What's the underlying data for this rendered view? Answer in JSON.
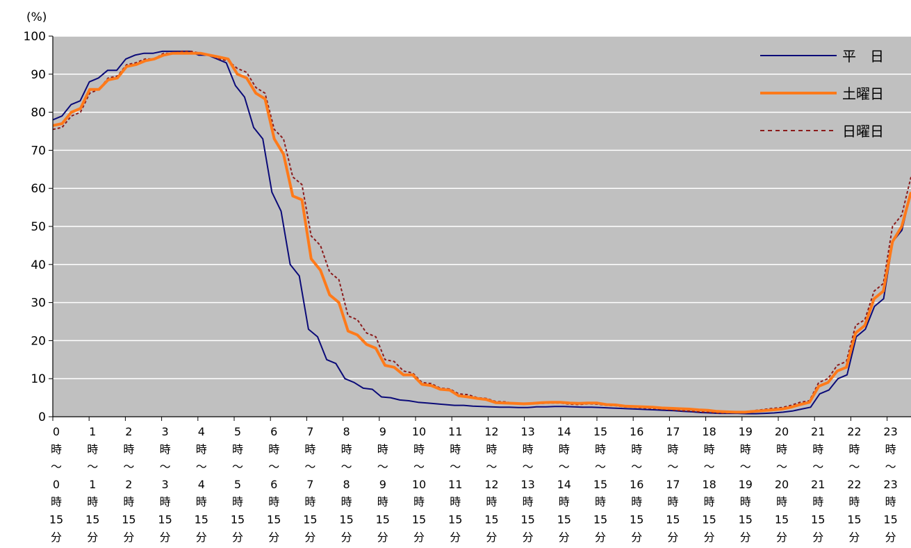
{
  "chart_data": {
    "type": "line",
    "y_unit_label": "(%)",
    "ylim": [
      0,
      100
    ],
    "yticks": [
      0,
      10,
      20,
      30,
      40,
      50,
      60,
      70,
      80,
      90,
      100
    ],
    "grid": true,
    "legend_position": "top-right",
    "x_labels": [
      "0",
      "1",
      "2",
      "3",
      "4",
      "5",
      "6",
      "7",
      "8",
      "9",
      "10",
      "11",
      "12",
      "13",
      "14",
      "15",
      "16",
      "17",
      "18",
      "19",
      "20",
      "21",
      "22",
      "23"
    ],
    "x_label_parts": {
      "hour_suffix": "時",
      "range_mark": "〜",
      "minute_text": "15",
      "minute_suffix": "分"
    },
    "series": [
      {
        "name": "平　日",
        "color": "#0a0a78",
        "style": "solid",
        "values": [
          78,
          79,
          82,
          83,
          88,
          89,
          91,
          91,
          94,
          95,
          95.5,
          95.5,
          96,
          96,
          96,
          96,
          95,
          95,
          94,
          93,
          87,
          84,
          76,
          73,
          59,
          54,
          40,
          37,
          23,
          21,
          15,
          14,
          10,
          9,
          7.5,
          7.2,
          5.2,
          5.0,
          4.4,
          4.2,
          3.8,
          3.6,
          3.4,
          3.2,
          3.0,
          3.0,
          2.8,
          2.7,
          2.6,
          2.5,
          2.5,
          2.4,
          2.4,
          2.6,
          2.6,
          2.7,
          2.7,
          2.6,
          2.5,
          2.5,
          2.4,
          2.3,
          2.2,
          2.1,
          2.0,
          1.9,
          1.8,
          1.7,
          1.6,
          1.4,
          1.3,
          1.1,
          1.0,
          0.9,
          0.9,
          0.9,
          0.8,
          0.8,
          0.9,
          1.0,
          1.2,
          1.5,
          2.0,
          2.5,
          6,
          7,
          10,
          11,
          21,
          23,
          29,
          31,
          46,
          49,
          59
        ]
      },
      {
        "name": "土曜日",
        "color": "#ff7a1a",
        "style": "thick",
        "values": [
          76.5,
          77,
          80,
          81,
          86,
          86,
          88.5,
          89,
          92,
          92.5,
          93.5,
          94,
          95,
          95.5,
          95.5,
          95.5,
          95.5,
          95,
          94.5,
          94,
          90,
          89,
          85,
          83.5,
          73,
          69,
          58,
          57,
          41.5,
          38.5,
          32,
          30,
          22.5,
          21.5,
          19,
          18,
          13.5,
          13,
          11,
          11,
          8.5,
          8.2,
          7.2,
          7,
          5.5,
          5.2,
          4.8,
          4.5,
          3.7,
          3.6,
          3.5,
          3.4,
          3.5,
          3.7,
          3.8,
          3.8,
          3.6,
          3.5,
          3.6,
          3.6,
          3.2,
          3.1,
          2.8,
          2.7,
          2.6,
          2.5,
          2.3,
          2.2,
          2.1,
          2.0,
          1.8,
          1.7,
          1.4,
          1.3,
          1.2,
          1.2,
          1.4,
          1.6,
          1.8,
          2.0,
          2.5,
          3.2,
          3.8,
          8,
          9,
          12,
          13,
          22,
          24,
          31,
          33,
          46,
          50,
          59
        ]
      },
      {
        "name": "日曜日",
        "color": "#8b1a1a",
        "style": "dashed",
        "values": [
          75.5,
          76,
          79,
          80,
          85,
          86,
          89,
          89.5,
          92.5,
          93,
          94,
          94,
          95.5,
          95.5,
          96,
          96,
          95.5,
          95,
          94,
          93.5,
          91.5,
          90.5,
          86.5,
          85,
          75.5,
          73,
          63,
          61,
          47.5,
          45,
          38,
          36,
          26.5,
          25.5,
          22,
          21,
          15,
          14.5,
          12,
          11.5,
          9,
          8.7,
          7.5,
          7.3,
          6,
          5.8,
          5,
          4.8,
          4,
          3.9,
          3.5,
          3.3,
          3.4,
          3.5,
          3.6,
          3.6,
          3.3,
          3.2,
          3.4,
          3.3,
          3.0,
          2.9,
          2.6,
          2.5,
          2.3,
          2.2,
          2.0,
          1.8,
          1.6,
          1.5,
          1.3,
          1.2,
          1.0,
          1.0,
          1.1,
          1.3,
          1.6,
          1.9,
          2.2,
          2.4,
          3.0,
          3.8,
          4.2,
          9,
          10,
          13.5,
          14.5,
          24,
          25.5,
          33,
          35,
          50,
          53,
          63
        ]
      }
    ]
  }
}
